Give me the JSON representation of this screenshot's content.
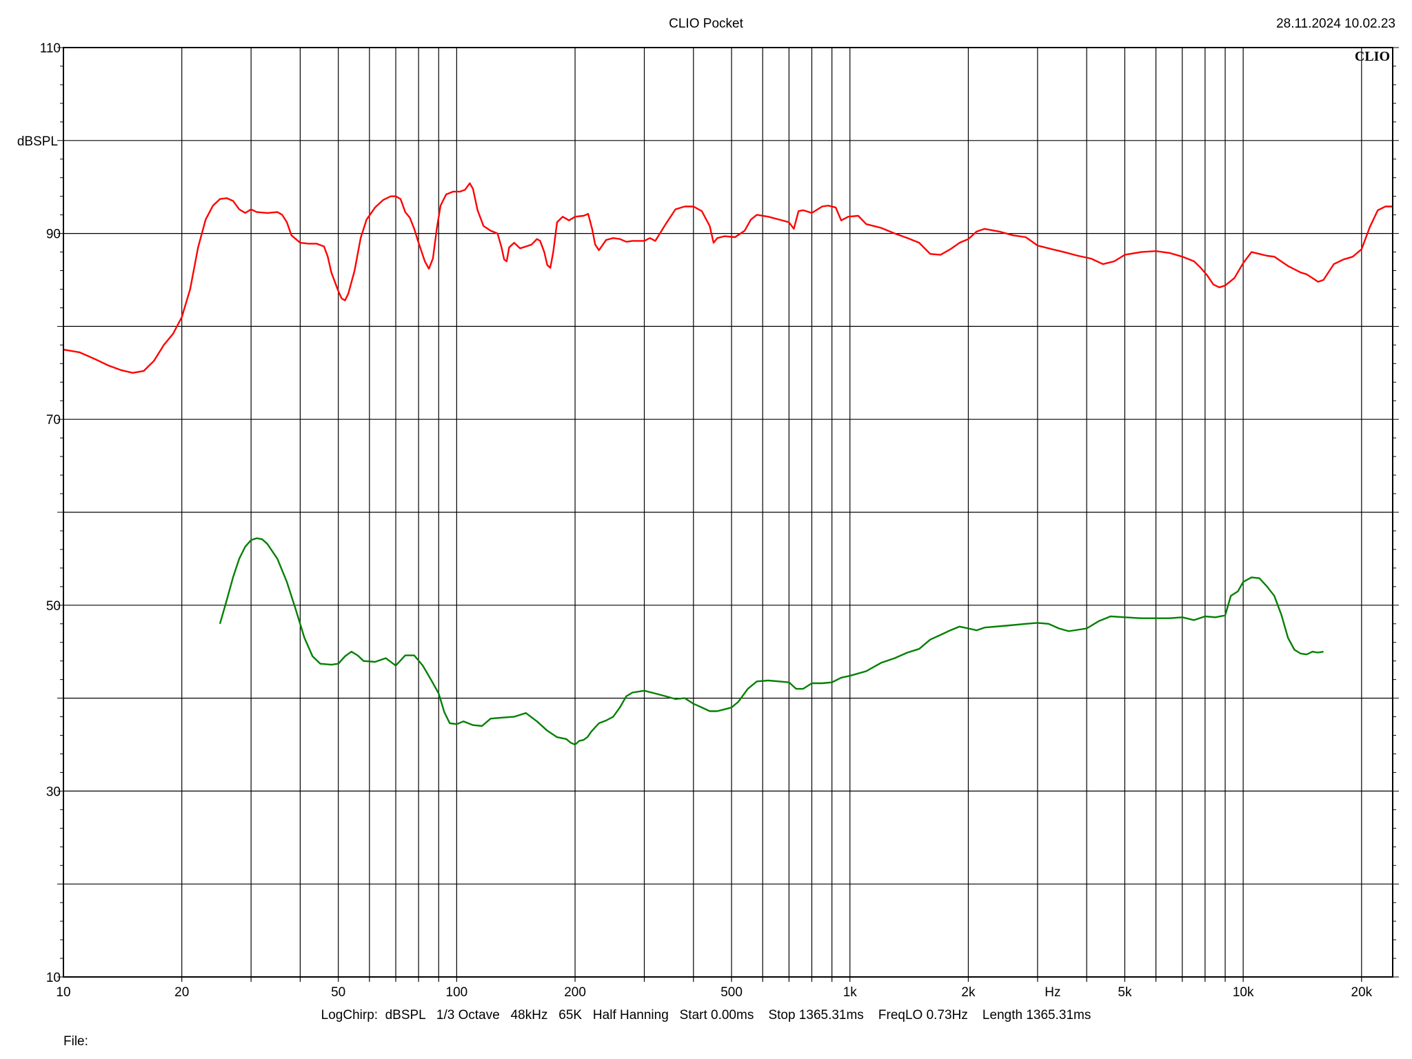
{
  "header": {
    "title": "CLIO Pocket",
    "timestamp": "28.11.2024 10.02.23",
    "brand": "CLIO"
  },
  "footer": {
    "settings": "LogChirp:  dBSPL   1/3 Octave   48kHz   65K   Half Hanning   Start 0.00ms    Stop 1365.31ms    FreqLO 0.73Hz    Length 1365.31ms",
    "file_label": "File:"
  },
  "chart_data": {
    "type": "line",
    "xscale": "log",
    "xlim": [
      10,
      24000
    ],
    "ylim": [
      10,
      110
    ],
    "xlabel": "Hz",
    "ylabel": "dBSPL",
    "grid": true,
    "y_ticks": [
      10,
      30,
      50,
      70,
      90,
      110
    ],
    "x_ticks": [
      {
        "value": 10,
        "label": "10"
      },
      {
        "value": 20,
        "label": "20"
      },
      {
        "value": 50,
        "label": "50"
      },
      {
        "value": 100,
        "label": "100"
      },
      {
        "value": 200,
        "label": "200"
      },
      {
        "value": 500,
        "label": "500"
      },
      {
        "value": 1000,
        "label": "1k"
      },
      {
        "value": 2000,
        "label": "2k"
      },
      {
        "value": 5000,
        "label": "5k"
      },
      {
        "value": 10000,
        "label": "10k"
      },
      {
        "value": 20000,
        "label": "20k"
      }
    ],
    "series": [
      {
        "color": "#ff0000",
        "points": [
          [
            10,
            77.5
          ],
          [
            11,
            77.2
          ],
          [
            12,
            76.5
          ],
          [
            13,
            75.8
          ],
          [
            14,
            75.3
          ],
          [
            15,
            75.0
          ],
          [
            16,
            75.2
          ],
          [
            17,
            76.3
          ],
          [
            18,
            78.0
          ],
          [
            19,
            79.2
          ],
          [
            20,
            81.0
          ],
          [
            21,
            84.0
          ],
          [
            22,
            88.5
          ],
          [
            23,
            91.5
          ],
          [
            24,
            93.0
          ],
          [
            25,
            93.7
          ],
          [
            26,
            93.8
          ],
          [
            27,
            93.5
          ],
          [
            28,
            92.6
          ],
          [
            29,
            92.2
          ],
          [
            30,
            92.6
          ],
          [
            31,
            92.3
          ],
          [
            33,
            92.2
          ],
          [
            35,
            92.3
          ],
          [
            36,
            92.0
          ],
          [
            37,
            91.2
          ],
          [
            38,
            89.8
          ],
          [
            40,
            89.0
          ],
          [
            42,
            88.9
          ],
          [
            44,
            88.9
          ],
          [
            46,
            88.6
          ],
          [
            47,
            87.5
          ],
          [
            48,
            85.8
          ],
          [
            50,
            83.8
          ],
          [
            51,
            83.0
          ],
          [
            52,
            82.8
          ],
          [
            53,
            83.5
          ],
          [
            55,
            86.0
          ],
          [
            57,
            89.5
          ],
          [
            59,
            91.5
          ],
          [
            62,
            92.8
          ],
          [
            65,
            93.6
          ],
          [
            68,
            94.0
          ],
          [
            70,
            94.0
          ],
          [
            72,
            93.7
          ],
          [
            74,
            92.3
          ],
          [
            76,
            91.7
          ],
          [
            78,
            90.5
          ],
          [
            80,
            89.0
          ],
          [
            83,
            87.0
          ],
          [
            85,
            86.2
          ],
          [
            87,
            87.3
          ],
          [
            89,
            90.5
          ],
          [
            91,
            93.0
          ],
          [
            94,
            94.2
          ],
          [
            98,
            94.5
          ],
          [
            102,
            94.5
          ],
          [
            105,
            94.7
          ],
          [
            108,
            95.4
          ],
          [
            110,
            94.8
          ],
          [
            113,
            92.5
          ],
          [
            117,
            90.8
          ],
          [
            122,
            90.3
          ],
          [
            127,
            90.0
          ],
          [
            130,
            88.5
          ],
          [
            132,
            87.2
          ],
          [
            134,
            87.0
          ],
          [
            136,
            88.5
          ],
          [
            140,
            89.0
          ],
          [
            145,
            88.4
          ],
          [
            150,
            88.6
          ],
          [
            155,
            88.8
          ],
          [
            160,
            89.4
          ],
          [
            163,
            89.2
          ],
          [
            167,
            88.0
          ],
          [
            170,
            86.6
          ],
          [
            173,
            86.3
          ],
          [
            176,
            88.0
          ],
          [
            180,
            91.2
          ],
          [
            186,
            91.8
          ],
          [
            193,
            91.4
          ],
          [
            200,
            91.8
          ],
          [
            210,
            91.9
          ],
          [
            216,
            92.1
          ],
          [
            221,
            90.5
          ],
          [
            225,
            88.8
          ],
          [
            230,
            88.2
          ],
          [
            240,
            89.3
          ],
          [
            250,
            89.5
          ],
          [
            260,
            89.4
          ],
          [
            270,
            89.1
          ],
          [
            280,
            89.2
          ],
          [
            300,
            89.2
          ],
          [
            310,
            89.5
          ],
          [
            320,
            89.2
          ],
          [
            340,
            91.0
          ],
          [
            360,
            92.6
          ],
          [
            380,
            92.9
          ],
          [
            400,
            92.9
          ],
          [
            420,
            92.4
          ],
          [
            440,
            90.8
          ],
          [
            450,
            89.0
          ],
          [
            460,
            89.5
          ],
          [
            480,
            89.7
          ],
          [
            510,
            89.6
          ],
          [
            540,
            90.3
          ],
          [
            560,
            91.5
          ],
          [
            580,
            92.0
          ],
          [
            620,
            91.8
          ],
          [
            660,
            91.5
          ],
          [
            700,
            91.2
          ],
          [
            720,
            90.5
          ],
          [
            740,
            92.4
          ],
          [
            760,
            92.5
          ],
          [
            800,
            92.2
          ],
          [
            850,
            92.9
          ],
          [
            880,
            93.0
          ],
          [
            920,
            92.8
          ],
          [
            950,
            91.4
          ],
          [
            990,
            91.8
          ],
          [
            1050,
            91.9
          ],
          [
            1100,
            91.0
          ],
          [
            1200,
            90.6
          ],
          [
            1300,
            90.0
          ],
          [
            1400,
            89.5
          ],
          [
            1500,
            89.0
          ],
          [
            1600,
            87.8
          ],
          [
            1700,
            87.7
          ],
          [
            1800,
            88.3
          ],
          [
            1900,
            89.0
          ],
          [
            2000,
            89.4
          ],
          [
            2100,
            90.2
          ],
          [
            2200,
            90.5
          ],
          [
            2400,
            90.2
          ],
          [
            2600,
            89.8
          ],
          [
            2800,
            89.6
          ],
          [
            3000,
            88.7
          ],
          [
            3200,
            88.4
          ],
          [
            3500,
            88.0
          ],
          [
            3800,
            87.6
          ],
          [
            4100,
            87.3
          ],
          [
            4400,
            86.7
          ],
          [
            4700,
            87.0
          ],
          [
            5000,
            87.7
          ],
          [
            5500,
            88.0
          ],
          [
            6000,
            88.1
          ],
          [
            6500,
            87.9
          ],
          [
            7000,
            87.5
          ],
          [
            7500,
            87.0
          ],
          [
            7800,
            86.3
          ],
          [
            8100,
            85.5
          ],
          [
            8400,
            84.5
          ],
          [
            8700,
            84.2
          ],
          [
            9000,
            84.4
          ],
          [
            9500,
            85.2
          ],
          [
            10000,
            86.8
          ],
          [
            10500,
            88.0
          ],
          [
            11000,
            87.8
          ],
          [
            11500,
            87.6
          ],
          [
            12000,
            87.5
          ],
          [
            13000,
            86.5
          ],
          [
            14000,
            85.8
          ],
          [
            14500,
            85.6
          ],
          [
            15000,
            85.2
          ],
          [
            15500,
            84.8
          ],
          [
            16000,
            85.0
          ],
          [
            17000,
            86.7
          ],
          [
            18000,
            87.2
          ],
          [
            19000,
            87.5
          ],
          [
            20000,
            88.3
          ],
          [
            21000,
            90.7
          ],
          [
            22000,
            92.5
          ],
          [
            23000,
            92.9
          ],
          [
            24000,
            92.9
          ]
        ]
      },
      {
        "color": "#008000",
        "points": [
          [
            25,
            48.0
          ],
          [
            26,
            50.5
          ],
          [
            27,
            53.0
          ],
          [
            28,
            55.0
          ],
          [
            29,
            56.3
          ],
          [
            30,
            57.0
          ],
          [
            31,
            57.2
          ],
          [
            32,
            57.1
          ],
          [
            33,
            56.6
          ],
          [
            35,
            55.0
          ],
          [
            37,
            52.5
          ],
          [
            39,
            49.5
          ],
          [
            41,
            46.5
          ],
          [
            43,
            44.5
          ],
          [
            45,
            43.7
          ],
          [
            48,
            43.6
          ],
          [
            50,
            43.7
          ],
          [
            52,
            44.5
          ],
          [
            54,
            45.0
          ],
          [
            56,
            44.6
          ],
          [
            58,
            44.0
          ],
          [
            62,
            43.9
          ],
          [
            66,
            44.3
          ],
          [
            70,
            43.5
          ],
          [
            74,
            44.6
          ],
          [
            78,
            44.6
          ],
          [
            82,
            43.5
          ],
          [
            86,
            42.0
          ],
          [
            90,
            40.5
          ],
          [
            93,
            38.5
          ],
          [
            96,
            37.3
          ],
          [
            100,
            37.2
          ],
          [
            104,
            37.5
          ],
          [
            110,
            37.1
          ],
          [
            116,
            37.0
          ],
          [
            122,
            37.8
          ],
          [
            130,
            37.9
          ],
          [
            140,
            38.0
          ],
          [
            150,
            38.4
          ],
          [
            160,
            37.5
          ],
          [
            170,
            36.5
          ],
          [
            180,
            35.8
          ],
          [
            190,
            35.6
          ],
          [
            195,
            35.2
          ],
          [
            200,
            35.0
          ],
          [
            205,
            35.4
          ],
          [
            210,
            35.5
          ],
          [
            215,
            35.8
          ],
          [
            220,
            36.4
          ],
          [
            230,
            37.3
          ],
          [
            240,
            37.6
          ],
          [
            250,
            38.0
          ],
          [
            260,
            39.0
          ],
          [
            270,
            40.2
          ],
          [
            280,
            40.6
          ],
          [
            300,
            40.8
          ],
          [
            320,
            40.5
          ],
          [
            340,
            40.2
          ],
          [
            360,
            39.9
          ],
          [
            380,
            40.0
          ],
          [
            400,
            39.4
          ],
          [
            420,
            39.0
          ],
          [
            440,
            38.6
          ],
          [
            460,
            38.6
          ],
          [
            480,
            38.8
          ],
          [
            500,
            39.0
          ],
          [
            520,
            39.6
          ],
          [
            550,
            41.0
          ],
          [
            580,
            41.8
          ],
          [
            620,
            41.9
          ],
          [
            660,
            41.8
          ],
          [
            700,
            41.7
          ],
          [
            730,
            41.0
          ],
          [
            760,
            41.0
          ],
          [
            800,
            41.6
          ],
          [
            850,
            41.6
          ],
          [
            900,
            41.7
          ],
          [
            950,
            42.2
          ],
          [
            1000,
            42.4
          ],
          [
            1100,
            42.9
          ],
          [
            1200,
            43.8
          ],
          [
            1300,
            44.3
          ],
          [
            1400,
            44.9
          ],
          [
            1500,
            45.3
          ],
          [
            1600,
            46.3
          ],
          [
            1700,
            46.8
          ],
          [
            1800,
            47.3
          ],
          [
            1900,
            47.7
          ],
          [
            2000,
            47.5
          ],
          [
            2100,
            47.3
          ],
          [
            2200,
            47.6
          ],
          [
            2500,
            47.8
          ],
          [
            2800,
            48.0
          ],
          [
            3000,
            48.1
          ],
          [
            3200,
            48.0
          ],
          [
            3400,
            47.5
          ],
          [
            3600,
            47.2
          ],
          [
            4000,
            47.5
          ],
          [
            4300,
            48.3
          ],
          [
            4600,
            48.8
          ],
          [
            5000,
            48.7
          ],
          [
            5500,
            48.6
          ],
          [
            6000,
            48.6
          ],
          [
            6500,
            48.6
          ],
          [
            7000,
            48.7
          ],
          [
            7500,
            48.4
          ],
          [
            8000,
            48.8
          ],
          [
            8500,
            48.7
          ],
          [
            9000,
            48.9
          ],
          [
            9300,
            51.0
          ],
          [
            9700,
            51.5
          ],
          [
            10000,
            52.5
          ],
          [
            10500,
            53.0
          ],
          [
            11000,
            52.9
          ],
          [
            11500,
            52.0
          ],
          [
            12000,
            51.0
          ],
          [
            12500,
            49.0
          ],
          [
            13000,
            46.5
          ],
          [
            13500,
            45.2
          ],
          [
            14000,
            44.8
          ],
          [
            14500,
            44.7
          ],
          [
            15000,
            45.0
          ],
          [
            15500,
            44.9
          ],
          [
            16000,
            45.0
          ]
        ]
      }
    ]
  }
}
